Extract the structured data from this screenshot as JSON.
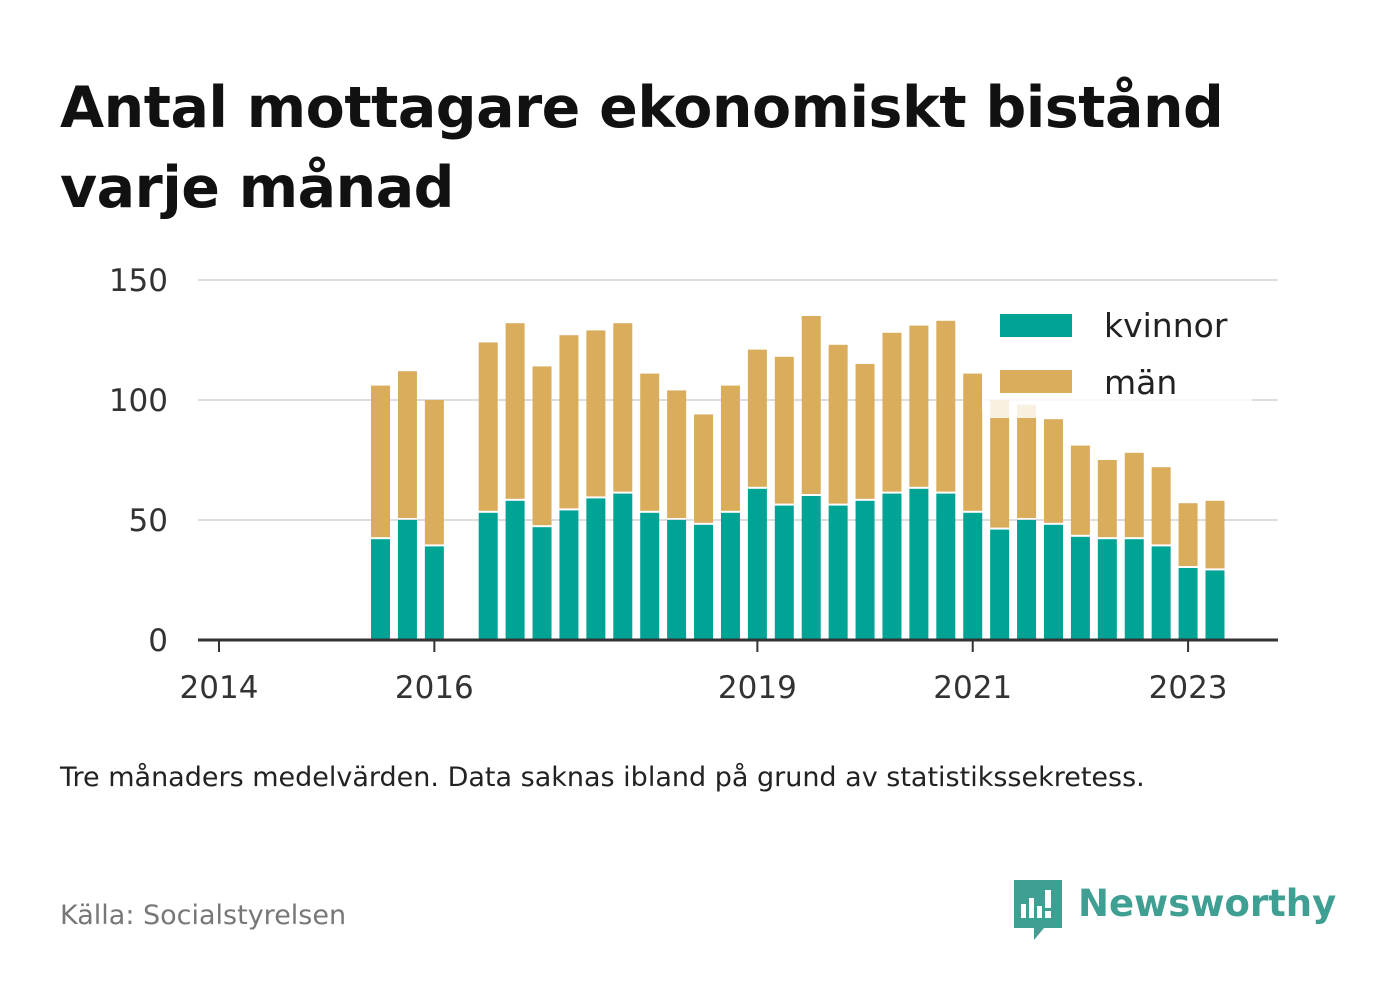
{
  "title": "Antal mottagare ekonomiskt bistånd varje månad",
  "note": "Tre månaders medelvärden. Data saknas ibland på grund av statistikssekretess.",
  "source": "Källa: Socialstyrelsen",
  "brand": {
    "name": "Newsworthy",
    "icon": "newsworthy-logo-icon"
  },
  "colors": {
    "kvinnor": "#00a394",
    "man": "#d9ad5b",
    "grid": "#dddddd",
    "axis": "#333333",
    "brand": "#3f9f93"
  },
  "chart_data": {
    "type": "bar",
    "stacked": true,
    "ylim": [
      0,
      150
    ],
    "yticks": [
      "0",
      "50",
      "100",
      "150"
    ],
    "x_tick_labels": [
      "2014",
      "2016",
      "2019",
      "2021",
      "2023"
    ],
    "legend_position": "top-right",
    "grid": true,
    "x_date_range": [
      "2014-01",
      "2023-04"
    ],
    "categories": [
      "2015-07",
      "2015-10",
      "2016-01",
      "2016-04",
      "2016-07",
      "2016-10",
      "2017-01",
      "2017-04",
      "2017-07",
      "2017-10",
      "2018-01",
      "2018-04",
      "2018-07",
      "2018-10",
      "2019-01",
      "2019-04",
      "2019-07",
      "2019-10",
      "2020-01",
      "2020-04",
      "2020-07",
      "2020-10",
      "2021-01",
      "2021-04",
      "2021-07",
      "2021-10",
      "2022-01",
      "2022-04",
      "2022-07",
      "2022-10",
      "2023-01",
      "2023-04"
    ],
    "present": [
      true,
      true,
      true,
      false,
      true,
      true,
      true,
      true,
      true,
      true,
      true,
      true,
      true,
      true,
      true,
      true,
      true,
      true,
      true,
      true,
      true,
      true,
      true,
      true,
      true,
      true,
      true,
      true,
      true,
      true,
      true,
      true
    ],
    "series": [
      {
        "name": "kvinnor",
        "values": [
          42,
          50,
          39,
          null,
          53,
          58,
          47,
          54,
          59,
          61,
          53,
          50,
          48,
          53,
          63,
          56,
          60,
          56,
          58,
          61,
          63,
          61,
          53,
          46,
          50,
          48,
          43,
          42,
          42,
          39,
          30,
          29
        ]
      },
      {
        "name": "män",
        "values": [
          64,
          62,
          61,
          null,
          71,
          74,
          67,
          73,
          70,
          71,
          58,
          54,
          46,
          53,
          58,
          62,
          75,
          67,
          57,
          67,
          68,
          72,
          58,
          54,
          48,
          44,
          38,
          33,
          36,
          33,
          27,
          29
        ]
      }
    ]
  }
}
